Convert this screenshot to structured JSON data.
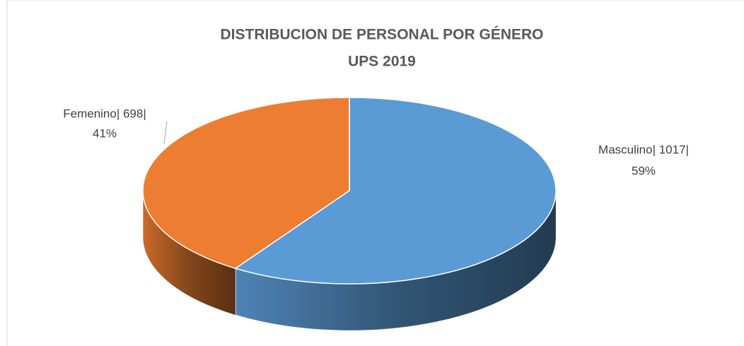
{
  "chart_data": {
    "type": "pie3d",
    "title": "DISTRIBUCION DE PERSONAL POR GÉNERO",
    "subtitle": "UPS 2019",
    "categories": [
      "Masculino",
      "Femenino"
    ],
    "values": [
      1017,
      698
    ],
    "value_labels": [
      "Masculino| 1017|",
      "Femenino| 698|"
    ],
    "percents": [
      59,
      41
    ],
    "percent_labels": [
      "59%",
      "41%"
    ],
    "colors": [
      "#5b9bd5",
      "#ed7d31"
    ]
  }
}
